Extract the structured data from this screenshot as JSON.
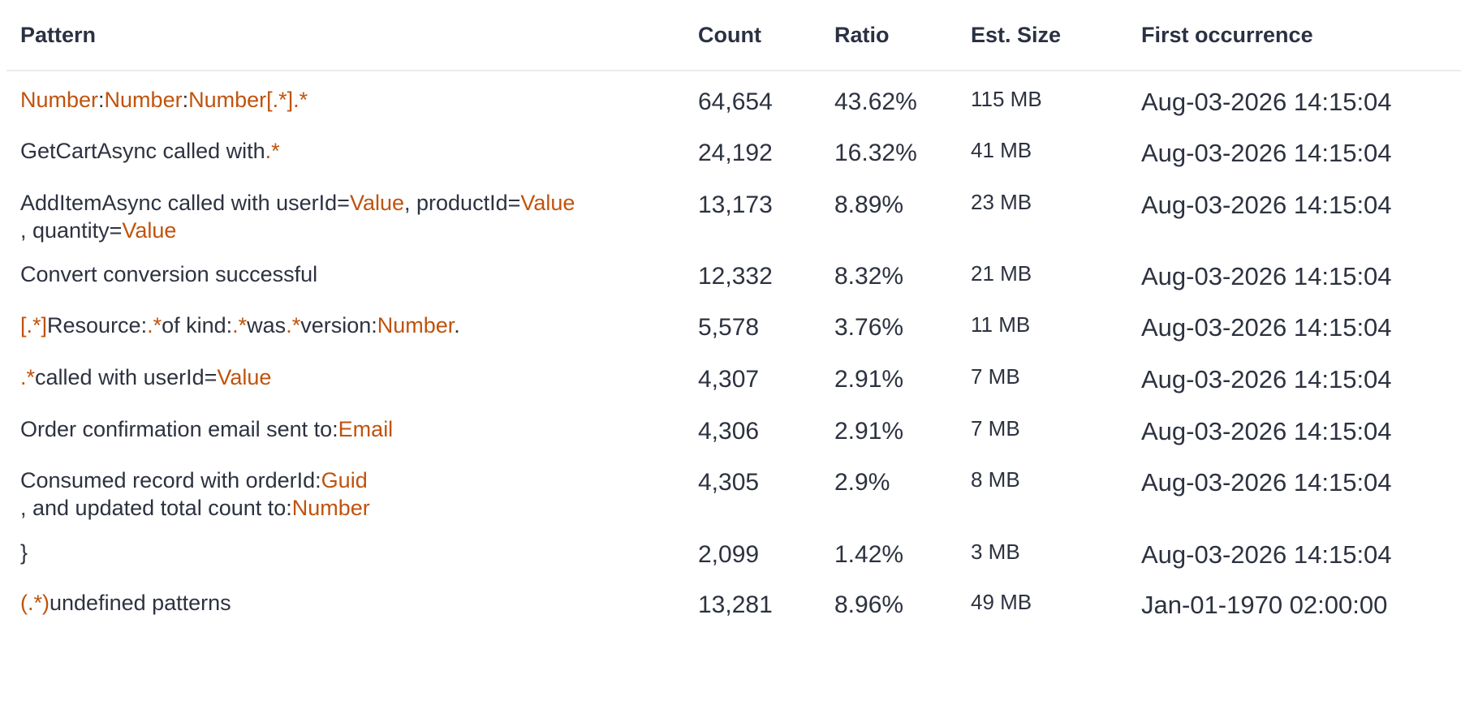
{
  "colors": {
    "variable": "#c0530d",
    "text": "#2d3240",
    "header": "#2a3142",
    "divider": "#ececf0"
  },
  "table": {
    "columns": [
      "Pattern",
      "Count",
      "Ratio",
      "Est. Size",
      "First occurrence"
    ],
    "rows": [
      {
        "pattern": [
          [
            {
              "t": "Number",
              "v": true
            },
            {
              "t": ":",
              "v": false
            },
            {
              "t": "Number",
              "v": true
            },
            {
              "t": ":",
              "v": false
            },
            {
              "t": "Number",
              "v": true
            },
            {
              "t": "[.*]",
              "v": true
            },
            {
              "t": ".*",
              "v": true
            }
          ]
        ],
        "count": "64,654",
        "ratio": "43.62%",
        "size": "115 MB",
        "first": "Aug-03-2026 14:15:04"
      },
      {
        "pattern": [
          [
            {
              "t": "GetCartAsync called with",
              "v": false
            },
            {
              "t": ".*",
              "v": true
            }
          ]
        ],
        "count": "24,192",
        "ratio": "16.32%",
        "size": "41 MB",
        "first": "Aug-03-2026 14:15:04"
      },
      {
        "pattern": [
          [
            {
              "t": "AddItemAsync called with userId=",
              "v": false
            },
            {
              "t": "Value",
              "v": true
            },
            {
              "t": ", productId=",
              "v": false
            },
            {
              "t": "Value",
              "v": true
            }
          ],
          [
            {
              "t": ", quantity=",
              "v": false
            },
            {
              "t": "Value",
              "v": true
            }
          ]
        ],
        "count": "13,173",
        "ratio": "8.89%",
        "size": "23 MB",
        "first": "Aug-03-2026 14:15:04"
      },
      {
        "pattern": [
          [
            {
              "t": "Convert conversion successful",
              "v": false
            }
          ]
        ],
        "count": "12,332",
        "ratio": "8.32%",
        "size": "21 MB",
        "first": "Aug-03-2026 14:15:04"
      },
      {
        "pattern": [
          [
            {
              "t": "[.*]",
              "v": true
            },
            {
              "t": "Resource:",
              "v": false
            },
            {
              "t": ".*",
              "v": true
            },
            {
              "t": "of kind:",
              "v": false
            },
            {
              "t": ".*",
              "v": true
            },
            {
              "t": "was",
              "v": false
            },
            {
              "t": ".*",
              "v": true
            },
            {
              "t": "version:",
              "v": false
            },
            {
              "t": "Number",
              "v": true
            },
            {
              "t": ".",
              "v": false
            }
          ]
        ],
        "count": "5,578",
        "ratio": "3.76%",
        "size": "11 MB",
        "first": "Aug-03-2026 14:15:04"
      },
      {
        "pattern": [
          [
            {
              "t": ".*",
              "v": true
            },
            {
              "t": "called with userId=",
              "v": false
            },
            {
              "t": "Value",
              "v": true
            }
          ]
        ],
        "count": "4,307",
        "ratio": "2.91%",
        "size": "7 MB",
        "first": "Aug-03-2026 14:15:04"
      },
      {
        "pattern": [
          [
            {
              "t": "Order confirmation email sent to:",
              "v": false
            },
            {
              "t": "Email",
              "v": true
            }
          ]
        ],
        "count": "4,306",
        "ratio": "2.91%",
        "size": "7 MB",
        "first": "Aug-03-2026 14:15:04"
      },
      {
        "pattern": [
          [
            {
              "t": "Consumed record with orderId:",
              "v": false
            },
            {
              "t": "Guid",
              "v": true
            }
          ],
          [
            {
              "t": ", and updated total count to:",
              "v": false
            },
            {
              "t": "Number",
              "v": true
            }
          ]
        ],
        "count": "4,305",
        "ratio": "2.9%",
        "size": "8 MB",
        "first": "Aug-03-2026 14:15:04"
      },
      {
        "pattern": [
          [
            {
              "t": "}",
              "v": false
            }
          ]
        ],
        "count": "2,099",
        "ratio": "1.42%",
        "size": "3 MB",
        "first": "Aug-03-2026 14:15:04"
      },
      {
        "pattern": [
          [
            {
              "t": "(.*)",
              "v": true
            },
            {
              "t": "undefined patterns",
              "v": false
            }
          ]
        ],
        "count": "13,281",
        "ratio": "8.96%",
        "size": "49 MB",
        "first": "Jan-01-1970 02:00:00"
      }
    ]
  }
}
